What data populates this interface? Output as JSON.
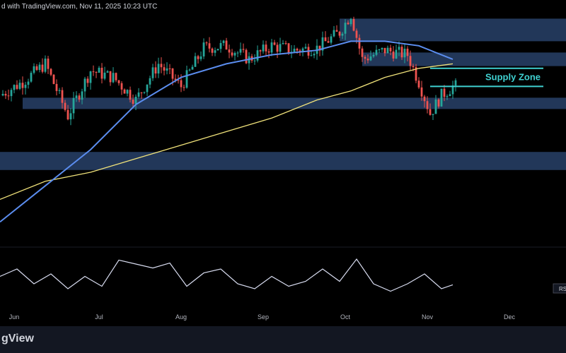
{
  "header": {
    "text": "d with TradingView.com, Nov 11, 2025 10:23 UTC"
  },
  "footer": {
    "brand": "gView"
  },
  "colors": {
    "background": "#000000",
    "up_candle": "#26a69a",
    "down_candle": "#ef5350",
    "sma_blue": "#5b8def",
    "sma_yellow": "#f0e27a",
    "zone_fill": "#2d4a77",
    "supply_zone": "#3fd0d0",
    "rsi_line": "#d8dcf0"
  },
  "chart_data": {
    "type": "candlestick",
    "x_axis_labels": [
      "Jun",
      "Jul",
      "Aug",
      "Sep",
      "Oct",
      "Nov",
      "Dec"
    ],
    "annotation": "Supply Zone",
    "rsi_label": "RS",
    "price_points": [
      [
        0.0,
        0.64
      ],
      [
        0.04,
        0.7
      ],
      [
        0.08,
        0.78
      ],
      [
        0.12,
        0.55
      ],
      [
        0.16,
        0.75
      ],
      [
        0.2,
        0.72
      ],
      [
        0.24,
        0.62
      ],
      [
        0.28,
        0.78
      ],
      [
        0.32,
        0.68
      ],
      [
        0.36,
        0.85
      ],
      [
        0.4,
        0.86
      ],
      [
        0.44,
        0.8
      ],
      [
        0.48,
        0.86
      ],
      [
        0.52,
        0.84
      ],
      [
        0.56,
        0.85
      ],
      [
        0.6,
        0.92
      ],
      [
        0.62,
        1.0
      ],
      [
        0.64,
        0.8
      ],
      [
        0.68,
        0.84
      ],
      [
        0.72,
        0.82
      ],
      [
        0.74,
        0.7
      ],
      [
        0.76,
        0.56
      ],
      [
        0.78,
        0.64
      ],
      [
        0.8,
        0.68
      ]
    ],
    "sma_blue_points": [
      [
        0.0,
        0.08
      ],
      [
        0.08,
        0.24
      ],
      [
        0.16,
        0.4
      ],
      [
        0.24,
        0.6
      ],
      [
        0.32,
        0.72
      ],
      [
        0.4,
        0.78
      ],
      [
        0.48,
        0.82
      ],
      [
        0.56,
        0.84
      ],
      [
        0.62,
        0.88
      ],
      [
        0.68,
        0.88
      ],
      [
        0.74,
        0.86
      ],
      [
        0.8,
        0.8
      ]
    ],
    "sma_yellow_points": [
      [
        0.0,
        0.18
      ],
      [
        0.08,
        0.26
      ],
      [
        0.16,
        0.3
      ],
      [
        0.24,
        0.36
      ],
      [
        0.32,
        0.42
      ],
      [
        0.4,
        0.48
      ],
      [
        0.48,
        0.54
      ],
      [
        0.56,
        0.62
      ],
      [
        0.62,
        0.66
      ],
      [
        0.68,
        0.72
      ],
      [
        0.74,
        0.76
      ],
      [
        0.8,
        0.78
      ]
    ],
    "zones": [
      {
        "name": "upper-resistance",
        "from": 0.6,
        "to": 1.0,
        "y_top": 0.98,
        "y_bot": 0.88
      },
      {
        "name": "mid-resistance",
        "from": 0.64,
        "to": 1.0,
        "y_top": 0.83,
        "y_bot": 0.77
      },
      {
        "name": "support",
        "from": 0.04,
        "to": 1.0,
        "y_top": 0.63,
        "y_bot": 0.58
      },
      {
        "name": "lower-support",
        "from": 0.0,
        "to": 1.0,
        "y_top": 0.39,
        "y_bot": 0.31
      }
    ],
    "supply_zone": {
      "from": 0.76,
      "to": 0.96,
      "y_top": 0.76,
      "y_bot": 0.68
    },
    "rsi_points": [
      [
        0.0,
        0.55
      ],
      [
        0.03,
        0.7
      ],
      [
        0.06,
        0.4
      ],
      [
        0.09,
        0.6
      ],
      [
        0.12,
        0.3
      ],
      [
        0.15,
        0.55
      ],
      [
        0.18,
        0.35
      ],
      [
        0.21,
        0.88
      ],
      [
        0.24,
        0.8
      ],
      [
        0.27,
        0.72
      ],
      [
        0.3,
        0.82
      ],
      [
        0.33,
        0.35
      ],
      [
        0.36,
        0.62
      ],
      [
        0.39,
        0.7
      ],
      [
        0.42,
        0.4
      ],
      [
        0.45,
        0.3
      ],
      [
        0.48,
        0.55
      ],
      [
        0.51,
        0.35
      ],
      [
        0.54,
        0.45
      ],
      [
        0.57,
        0.7
      ],
      [
        0.6,
        0.45
      ],
      [
        0.63,
        0.9
      ],
      [
        0.66,
        0.4
      ],
      [
        0.69,
        0.25
      ],
      [
        0.72,
        0.4
      ],
      [
        0.75,
        0.6
      ],
      [
        0.78,
        0.3
      ],
      [
        0.8,
        0.38
      ]
    ]
  }
}
